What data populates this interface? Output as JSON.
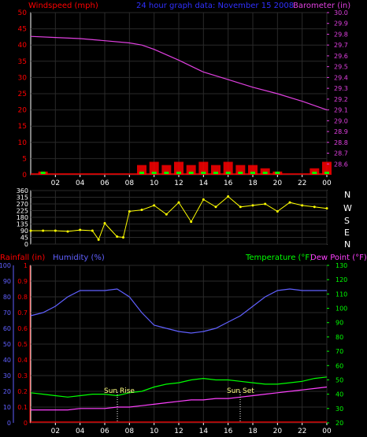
{
  "top_panel": {
    "left_label": "Windspeed (mph)",
    "center_label": "24 hour graph data: November 15 2008",
    "right_label": "Barometer (in)"
  },
  "mid_panel": {
    "right_labels": [
      "N",
      "W",
      "S",
      "E",
      "N"
    ]
  },
  "bottom_panel": {
    "rainfall_label": "Rainfall (in)",
    "humidity_label": "Humidity (%)",
    "temperature_label": "Temperature (°F)",
    "dewpoint_label": "Dew Point (°F)",
    "sunrise_label": "Sun Rise",
    "sunset_label": "Sun Set"
  },
  "colors": {
    "wind_red": "#ff0000",
    "wind_green": "#00ff00",
    "wind_white": "#ffffff",
    "barometer": "#e040e0",
    "direction": "#ffff00",
    "humidity": "#6060ff",
    "temperature": "#00ff00",
    "dewpoint": "#ff40ff",
    "rainfall": "#ff0000",
    "axis": "#ffffff",
    "grid": "#2a2a2a",
    "date_text": "#3030ff"
  },
  "chart_data": [
    {
      "type": "line",
      "x_ticks": [
        "02",
        "04",
        "06",
        "08",
        "10",
        "12",
        "14",
        "16",
        "18",
        "20",
        "22",
        "00"
      ],
      "y_left": {
        "label": "Windspeed (mph)",
        "ticks": [
          0,
          5,
          10,
          15,
          20,
          25,
          30,
          35,
          40,
          45,
          50
        ],
        "range": [
          0,
          50
        ]
      },
      "y_right": {
        "label": "Barometer (in)",
        "ticks": [
          28.6,
          28.7,
          28.8,
          28.9,
          29.0,
          29.1,
          29.2,
          29.3,
          29.4,
          29.5,
          29.6,
          29.7,
          29.8,
          29.9,
          30.0
        ],
        "range": [
          28.5,
          30.0
        ]
      },
      "series": [
        {
          "name": "Barometer (in)",
          "axis": "right",
          "x": [
            0,
            2,
            4,
            6,
            8,
            9,
            10,
            12,
            14,
            16,
            18,
            20,
            22,
            24
          ],
          "values": [
            29.78,
            29.77,
            29.76,
            29.74,
            29.72,
            29.7,
            29.66,
            29.56,
            29.45,
            29.38,
            29.31,
            29.25,
            29.18,
            29.1
          ]
        },
        {
          "name": "Windspeed (mph)",
          "axis": "left",
          "x": [
            0,
            1,
            2,
            4,
            6,
            8,
            9,
            10,
            11,
            12,
            13,
            14,
            15,
            16,
            17,
            18,
            19,
            20,
            21,
            22,
            23,
            24
          ],
          "values": [
            0,
            1,
            0,
            0,
            0,
            0,
            3,
            4,
            3,
            4,
            3,
            4,
            3,
            4,
            3,
            3,
            2,
            1,
            0,
            0,
            2,
            4
          ]
        }
      ]
    },
    {
      "type": "scatter",
      "y_ticks": [
        0,
        45,
        90,
        135,
        180,
        225,
        270,
        315,
        360
      ],
      "y_range": [
        0,
        360
      ],
      "series": [
        {
          "name": "Wind Direction",
          "x": [
            0,
            1,
            2,
            3,
            4,
            5,
            5.5,
            6,
            7,
            7.5,
            8,
            9,
            10,
            11,
            12,
            13,
            14,
            15,
            16,
            17,
            18,
            19,
            20,
            21,
            22,
            23,
            24
          ],
          "values": [
            90,
            90,
            90,
            85,
            95,
            90,
            30,
            140,
            50,
            45,
            220,
            230,
            260,
            200,
            280,
            150,
            300,
            250,
            320,
            250,
            260,
            270,
            220,
            280,
            260,
            250,
            240
          ]
        }
      ]
    },
    {
      "type": "line",
      "x_ticks": [
        "02",
        "04",
        "06",
        "08",
        "10",
        "12",
        "14",
        "16",
        "18",
        "20",
        "22",
        "00"
      ],
      "y_rain": {
        "label": "Rainfall (in)",
        "ticks": [
          0,
          0.1,
          0.2,
          0.3,
          0.4,
          0.5,
          0.6,
          0.7,
          0.8,
          0.9,
          1
        ],
        "range": [
          0,
          1
        ]
      },
      "y_humidity": {
        "label": "Humidity (%)",
        "ticks": [
          0,
          10,
          20,
          30,
          40,
          50,
          60,
          70,
          80,
          90,
          100
        ],
        "range": [
          0,
          100
        ]
      },
      "y_temp": {
        "label": "Temperature (°F)",
        "ticks": [
          20,
          30,
          40,
          50,
          60,
          70,
          80,
          90,
          100,
          110,
          120,
          130
        ],
        "range": [
          20,
          130
        ]
      },
      "series": [
        {
          "name": "Humidity (%)",
          "axis": "humidity",
          "x": [
            0,
            1,
            2,
            3,
            4,
            5,
            6,
            7,
            8,
            9,
            10,
            11,
            12,
            13,
            14,
            15,
            16,
            17,
            18,
            19,
            20,
            21,
            22,
            23,
            24
          ],
          "values": [
            68,
            70,
            74,
            80,
            84,
            84,
            84,
            85,
            80,
            70,
            62,
            60,
            58,
            57,
            58,
            60,
            64,
            68,
            74,
            80,
            84,
            85,
            84,
            84,
            84
          ]
        },
        {
          "name": "Temperature (°F)",
          "axis": "temp",
          "x": [
            0,
            1,
            2,
            3,
            4,
            5,
            6,
            7,
            8,
            9,
            10,
            11,
            12,
            13,
            14,
            15,
            16,
            17,
            18,
            19,
            20,
            21,
            22,
            23,
            24
          ],
          "values": [
            41,
            40,
            39,
            38,
            39,
            40,
            40,
            39,
            41,
            42,
            45,
            47,
            48,
            50,
            51,
            50,
            50,
            49,
            48,
            47,
            47,
            48,
            49,
            51,
            52
          ]
        },
        {
          "name": "Dew Point (°F)",
          "axis": "temp",
          "x": [
            0,
            1,
            2,
            3,
            4,
            5,
            6,
            7,
            8,
            9,
            10,
            11,
            12,
            13,
            14,
            15,
            16,
            17,
            18,
            19,
            20,
            21,
            22,
            23,
            24
          ],
          "values": [
            29,
            29,
            29,
            29,
            30,
            30,
            30,
            31,
            31,
            32,
            33,
            34,
            35,
            36,
            36,
            37,
            37,
            38,
            39,
            40,
            41,
            42,
            43,
            44,
            45
          ]
        },
        {
          "name": "Rainfall (in)",
          "axis": "rain",
          "x": [
            0,
            24
          ],
          "values": [
            0,
            0
          ]
        }
      ],
      "annotations": [
        {
          "text": "Sun Rise",
          "x": 7
        },
        {
          "text": "Sun Set",
          "x": 17
        }
      ]
    }
  ]
}
